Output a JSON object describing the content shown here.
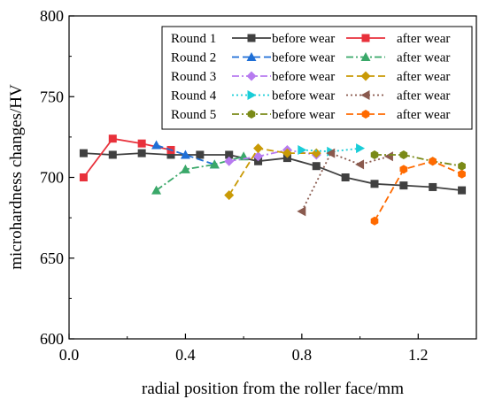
{
  "chart_data": {
    "type": "line",
    "xlabel": "radial position from the roller face/mm",
    "ylabel": "microhardness changes/HV",
    "xlim": [
      0.0,
      1.4
    ],
    "ylim": [
      600,
      800
    ],
    "xticks": [
      0.0,
      0.4,
      0.8,
      1.2
    ],
    "yticks": [
      600,
      650,
      700,
      750,
      800
    ],
    "grid": false,
    "legend_position": "top-right",
    "legend_rows": [
      {
        "round": "Round 1",
        "before": "before wear",
        "after": "after wear"
      },
      {
        "round": "Round 2",
        "before": "before wear",
        "after": "after wear"
      },
      {
        "round": "Round 3",
        "before": "before wear",
        "after": "after wear"
      },
      {
        "round": "Round 4",
        "before": "before wear",
        "after": "after wear"
      },
      {
        "round": "Round 5",
        "before": "before wear",
        "after": "after wear"
      }
    ],
    "series": [
      {
        "color": "#404040",
        "marker": "square",
        "dash": "solid",
        "x": [
          0.05,
          0.15,
          0.25,
          0.35,
          0.45,
          0.55,
          0.65,
          0.75,
          0.85,
          0.95,
          1.05,
          1.15,
          1.25,
          1.35
        ],
        "y": [
          715,
          714,
          715,
          714,
          714,
          714,
          710,
          712,
          707,
          700,
          696,
          695,
          694,
          692
        ]
      },
      {
        "color": "#e8313b",
        "marker": "square",
        "dash": "solid",
        "x": [
          0.05,
          0.15,
          0.25,
          0.35
        ],
        "y": [
          700,
          724,
          721,
          717
        ]
      },
      {
        "color": "#1f6fd6",
        "marker": "triangle",
        "dash": "dash",
        "x": [
          0.3,
          0.4,
          0.5
        ],
        "y": [
          720,
          714,
          708
        ]
      },
      {
        "color": "#3aa869",
        "marker": "triangle",
        "dash": "dashdot",
        "x": [
          0.3,
          0.4,
          0.5,
          0.6
        ],
        "y": [
          692,
          705,
          708,
          713
        ]
      },
      {
        "color": "#b77bf0",
        "marker": "diamond",
        "dash": "dashdot",
        "x": [
          0.55,
          0.65,
          0.75,
          0.85
        ],
        "y": [
          710,
          713,
          717,
          714
        ]
      },
      {
        "color": "#c99a06",
        "marker": "diamond",
        "dash": "dash",
        "x": [
          0.55,
          0.65,
          0.75,
          0.85
        ],
        "y": [
          689,
          718,
          715,
          715
        ]
      },
      {
        "color": "#19cdd8",
        "marker": "triangle-right",
        "dash": "dot",
        "x": [
          0.8,
          0.9,
          1.0
        ],
        "y": [
          717,
          716,
          718
        ]
      },
      {
        "color": "#8a5a4e",
        "marker": "triangle-left",
        "dash": "dot",
        "x": [
          0.8,
          0.9,
          1.0,
          1.1
        ],
        "y": [
          679,
          715,
          708,
          713
        ]
      },
      {
        "color": "#7a8a17",
        "marker": "hexagon",
        "dash": "dashdot",
        "x": [
          1.05,
          1.15,
          1.25,
          1.35
        ],
        "y": [
          714,
          714,
          710,
          707
        ]
      },
      {
        "color": "#ff6a00",
        "marker": "hexagon",
        "dash": "dash",
        "x": [
          1.05,
          1.15,
          1.25,
          1.35
        ],
        "y": [
          673,
          705,
          710,
          702
        ]
      }
    ]
  }
}
